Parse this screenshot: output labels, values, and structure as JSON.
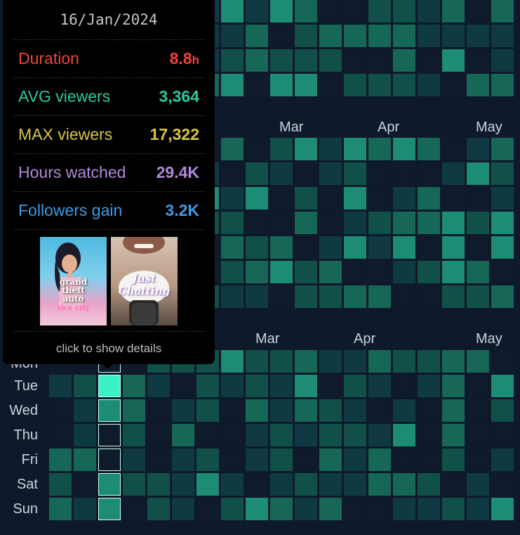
{
  "calendar": {
    "month_labels_top": [
      "Mar",
      "Apr",
      "May"
    ],
    "month_labels_bottom": [
      "Mar",
      "Apr",
      "May"
    ],
    "day_labels": [
      "Mon",
      "Tue",
      "Wed",
      "Thu",
      "Fri",
      "Sat",
      "Sun"
    ]
  },
  "tooltip": {
    "date": "16/Jan/2024",
    "duration_label": "Duration",
    "duration_value": "8.8",
    "duration_unit": "h",
    "avg_label": "AVG viewers",
    "avg_value": "3,364",
    "max_label": "MAX viewers",
    "max_value": "17,322",
    "hours_label": "Hours watched",
    "hours_value": "29.4K",
    "followers_label": "Followers gain",
    "followers_value": "3.2K",
    "thumb_gta_title": "grand theft auto",
    "thumb_gta_sub": "vice city",
    "thumb_chat_title": "Just Chatting",
    "footer": "click to show details"
  },
  "colors": {
    "background": "#0e1a2b",
    "duration": "#f0433a",
    "avg": "#2fc6a0",
    "max": "#d8c640",
    "hours": "#b08ad8",
    "followers": "#3e9ae8",
    "levels": [
      "#0f1b2c",
      "#0f3a44",
      "#115049",
      "#166756",
      "#1d8c74",
      "#39f2c6"
    ]
  }
}
